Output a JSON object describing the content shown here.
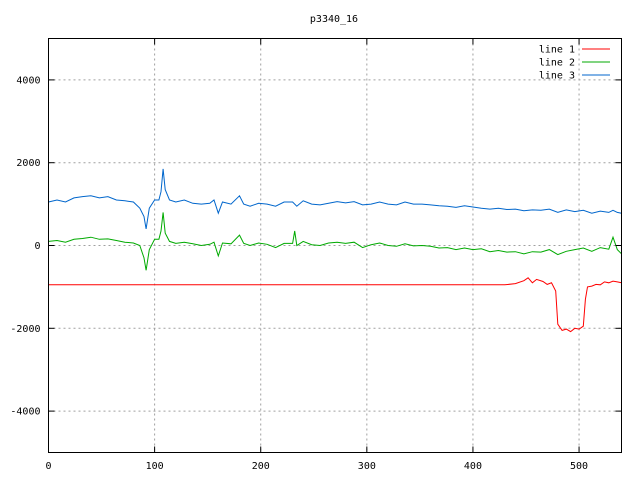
{
  "chart_data": {
    "type": "line",
    "title": "p3340_16",
    "xlabel": "",
    "ylabel": "",
    "xlim": [
      0,
      540
    ],
    "ylim": [
      -5000,
      5000
    ],
    "xticks": [
      0,
      100,
      200,
      300,
      400,
      500
    ],
    "yticks": [
      -4000,
      -2000,
      0,
      2000,
      4000
    ],
    "grid": true,
    "legend_position": "top-right",
    "series": [
      {
        "name": "line 1",
        "color": "#ff0000",
        "points": [
          [
            0,
            -950
          ],
          [
            430,
            -950
          ],
          [
            440,
            -920
          ],
          [
            448,
            -850
          ],
          [
            452,
            -780
          ],
          [
            456,
            -900
          ],
          [
            460,
            -820
          ],
          [
            466,
            -870
          ],
          [
            470,
            -940
          ],
          [
            474,
            -900
          ],
          [
            478,
            -1100
          ],
          [
            480,
            -1900
          ],
          [
            484,
            -2050
          ],
          [
            488,
            -2020
          ],
          [
            492,
            -2080
          ],
          [
            496,
            -2000
          ],
          [
            500,
            -2020
          ],
          [
            504,
            -1950
          ],
          [
            506,
            -1300
          ],
          [
            508,
            -1000
          ],
          [
            512,
            -980
          ],
          [
            516,
            -940
          ],
          [
            520,
            -950
          ],
          [
            524,
            -880
          ],
          [
            528,
            -900
          ],
          [
            532,
            -860
          ],
          [
            536,
            -880
          ],
          [
            540,
            -900
          ]
        ]
      },
      {
        "name": "line 2",
        "color": "#00aa00",
        "points": [
          [
            0,
            100
          ],
          [
            8,
            120
          ],
          [
            16,
            80
          ],
          [
            24,
            150
          ],
          [
            32,
            170
          ],
          [
            40,
            200
          ],
          [
            48,
            150
          ],
          [
            56,
            160
          ],
          [
            64,
            120
          ],
          [
            72,
            80
          ],
          [
            80,
            60
          ],
          [
            86,
            0
          ],
          [
            90,
            -300
          ],
          [
            92,
            -600
          ],
          [
            95,
            -100
          ],
          [
            100,
            150
          ],
          [
            104,
            150
          ],
          [
            106,
            350
          ],
          [
            108,
            800
          ],
          [
            110,
            300
          ],
          [
            114,
            100
          ],
          [
            120,
            50
          ],
          [
            128,
            80
          ],
          [
            136,
            40
          ],
          [
            144,
            0
          ],
          [
            152,
            30
          ],
          [
            156,
            80
          ],
          [
            160,
            -250
          ],
          [
            164,
            60
          ],
          [
            172,
            40
          ],
          [
            180,
            250
          ],
          [
            184,
            50
          ],
          [
            190,
            0
          ],
          [
            198,
            60
          ],
          [
            206,
            30
          ],
          [
            214,
            -50
          ],
          [
            222,
            50
          ],
          [
            230,
            50
          ],
          [
            232,
            350
          ],
          [
            234,
            0
          ],
          [
            240,
            100
          ],
          [
            248,
            20
          ],
          [
            256,
            0
          ],
          [
            264,
            60
          ],
          [
            272,
            80
          ],
          [
            280,
            50
          ],
          [
            288,
            80
          ],
          [
            296,
            -50
          ],
          [
            304,
            20
          ],
          [
            312,
            60
          ],
          [
            320,
            0
          ],
          [
            328,
            -20
          ],
          [
            336,
            40
          ],
          [
            344,
            -10
          ],
          [
            352,
            0
          ],
          [
            360,
            -20
          ],
          [
            368,
            -60
          ],
          [
            376,
            -50
          ],
          [
            384,
            -100
          ],
          [
            392,
            -60
          ],
          [
            400,
            -100
          ],
          [
            408,
            -80
          ],
          [
            416,
            -150
          ],
          [
            424,
            -120
          ],
          [
            432,
            -160
          ],
          [
            440,
            -150
          ],
          [
            448,
            -200
          ],
          [
            456,
            -150
          ],
          [
            464,
            -160
          ],
          [
            472,
            -100
          ],
          [
            480,
            -220
          ],
          [
            488,
            -140
          ],
          [
            496,
            -100
          ],
          [
            504,
            -60
          ],
          [
            512,
            -140
          ],
          [
            520,
            -50
          ],
          [
            528,
            -90
          ],
          [
            532,
            200
          ],
          [
            536,
            -100
          ],
          [
            540,
            -200
          ]
        ]
      },
      {
        "name": "line 3",
        "color": "#0066cc",
        "points": [
          [
            0,
            1050
          ],
          [
            8,
            1100
          ],
          [
            16,
            1050
          ],
          [
            24,
            1150
          ],
          [
            32,
            1180
          ],
          [
            40,
            1200
          ],
          [
            48,
            1150
          ],
          [
            56,
            1180
          ],
          [
            64,
            1100
          ],
          [
            72,
            1080
          ],
          [
            80,
            1050
          ],
          [
            86,
            900
          ],
          [
            90,
            700
          ],
          [
            92,
            400
          ],
          [
            95,
            900
          ],
          [
            100,
            1100
          ],
          [
            104,
            1100
          ],
          [
            106,
            1300
          ],
          [
            108,
            1850
          ],
          [
            110,
            1350
          ],
          [
            114,
            1100
          ],
          [
            120,
            1050
          ],
          [
            128,
            1100
          ],
          [
            136,
            1020
          ],
          [
            144,
            1000
          ],
          [
            152,
            1020
          ],
          [
            156,
            1100
          ],
          [
            160,
            780
          ],
          [
            164,
            1050
          ],
          [
            172,
            1000
          ],
          [
            180,
            1200
          ],
          [
            184,
            1000
          ],
          [
            190,
            950
          ],
          [
            198,
            1020
          ],
          [
            206,
            1000
          ],
          [
            214,
            950
          ],
          [
            222,
            1050
          ],
          [
            230,
            1050
          ],
          [
            234,
            950
          ],
          [
            240,
            1080
          ],
          [
            248,
            1000
          ],
          [
            256,
            980
          ],
          [
            264,
            1020
          ],
          [
            272,
            1060
          ],
          [
            280,
            1030
          ],
          [
            288,
            1060
          ],
          [
            296,
            980
          ],
          [
            304,
            1000
          ],
          [
            312,
            1050
          ],
          [
            320,
            1000
          ],
          [
            328,
            980
          ],
          [
            336,
            1050
          ],
          [
            344,
            1000
          ],
          [
            352,
            1000
          ],
          [
            360,
            980
          ],
          [
            368,
            960
          ],
          [
            376,
            950
          ],
          [
            384,
            920
          ],
          [
            392,
            960
          ],
          [
            400,
            930
          ],
          [
            408,
            900
          ],
          [
            416,
            880
          ],
          [
            424,
            900
          ],
          [
            432,
            870
          ],
          [
            440,
            880
          ],
          [
            448,
            840
          ],
          [
            456,
            860
          ],
          [
            464,
            850
          ],
          [
            472,
            880
          ],
          [
            480,
            800
          ],
          [
            488,
            860
          ],
          [
            496,
            820
          ],
          [
            504,
            850
          ],
          [
            512,
            780
          ],
          [
            520,
            830
          ],
          [
            528,
            800
          ],
          [
            532,
            850
          ],
          [
            536,
            800
          ],
          [
            540,
            780
          ]
        ]
      }
    ]
  }
}
